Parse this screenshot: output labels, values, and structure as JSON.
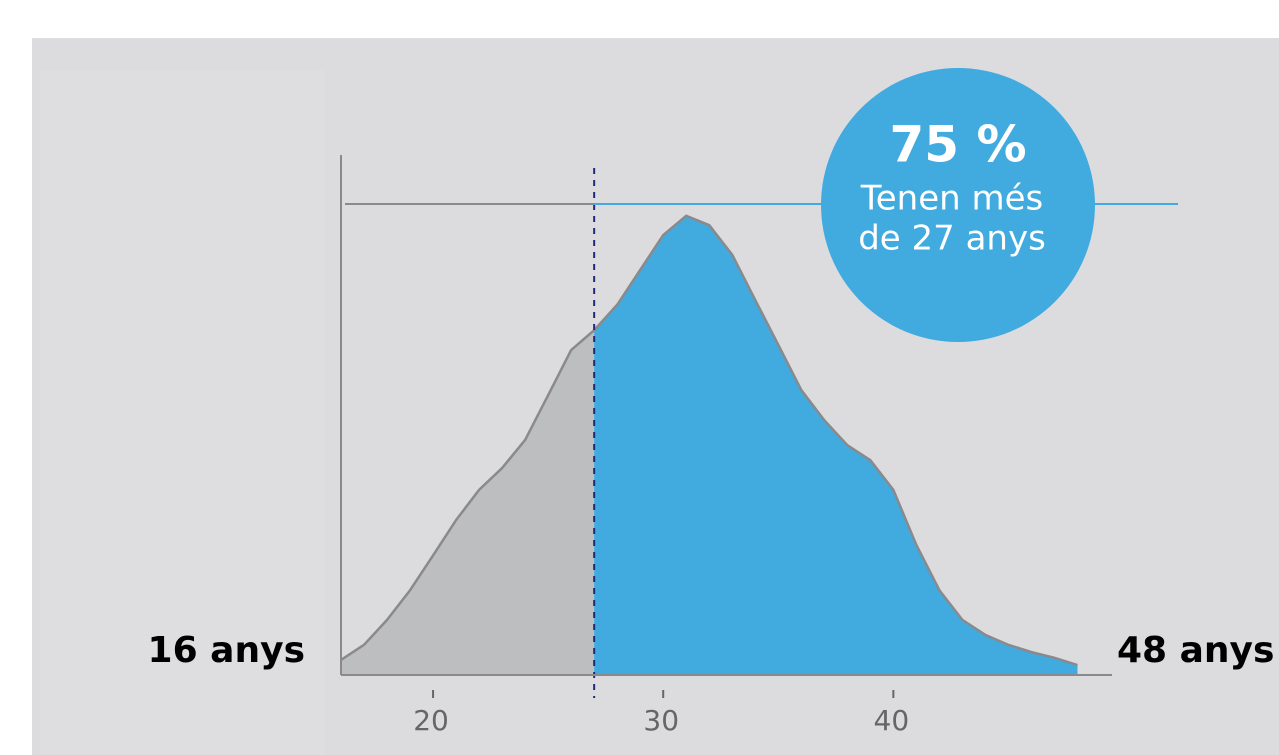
{
  "chart_data": {
    "type": "area",
    "x": [
      16,
      17,
      18,
      19,
      20,
      21,
      22,
      23,
      24,
      25,
      26,
      27,
      28,
      29,
      30,
      31,
      32,
      33,
      34,
      35,
      36,
      37,
      38,
      39,
      40,
      41,
      42,
      43,
      44,
      45,
      46,
      47,
      48
    ],
    "values": [
      2.9,
      5.8,
      10.6,
      16.3,
      23,
      29.8,
      35.6,
      39.8,
      45.2,
      53.8,
      62.5,
      66.3,
      71.2,
      77.9,
      84.6,
      88.3,
      86.5,
      80.8,
      72.1,
      63.5,
      54.8,
      49,
      44.2,
      41.3,
      35.6,
      25,
      16.3,
      10.6,
      7.7,
      5.8,
      4.4,
      3.3,
      1.9
    ],
    "threshold": 27,
    "colors": {
      "below": "#bdbec0",
      "above": "#41aadf",
      "outline": "#8a8a8c"
    },
    "xlim": [
      16,
      49.5
    ],
    "ylim": [
      0,
      100
    ],
    "xticks": [
      20,
      30,
      40
    ],
    "annotation": {
      "value": "75 %",
      "line1": "Tenen més",
      "line2": "de 27 anys"
    },
    "min_label": "16 anys",
    "max_label": "48 anys"
  }
}
